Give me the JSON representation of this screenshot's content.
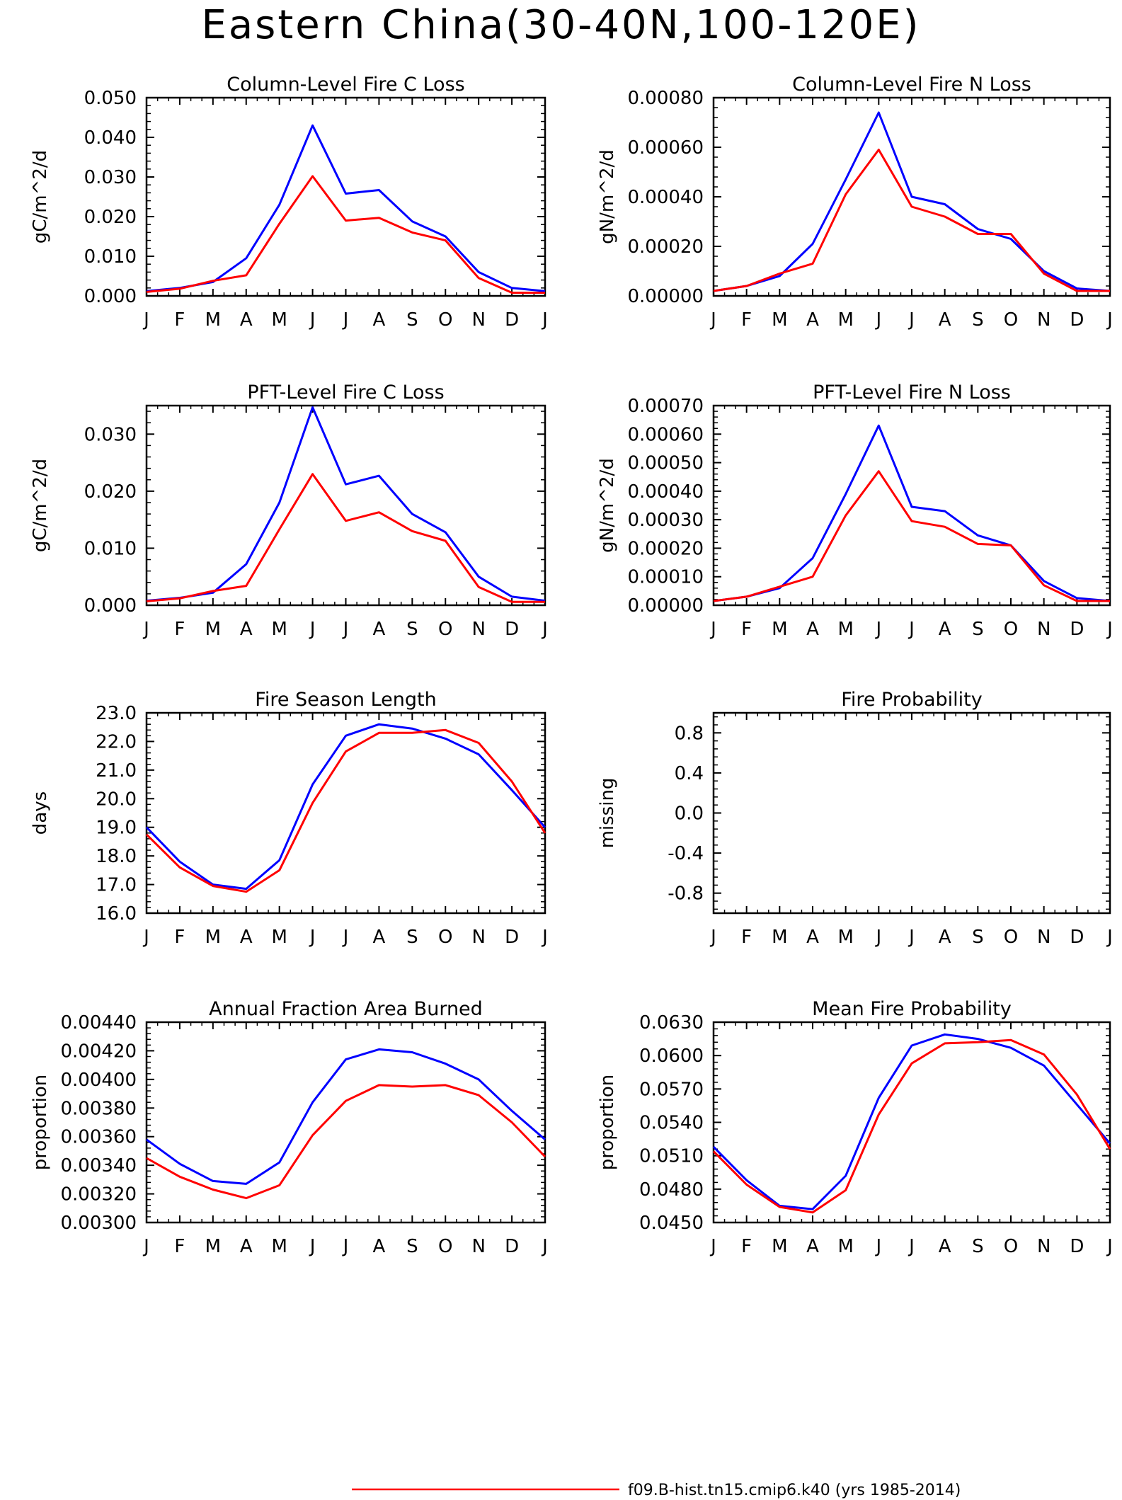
{
  "page_title": "Eastern China(30-40N,100-120E)",
  "colors": {
    "blue": "#0000ff",
    "red": "#ff0000",
    "axis": "#000000"
  },
  "legend": {
    "entries": [
      {
        "label": "f09.B-hist.tn15.cmip6.k40 (yrs 1985-2014)",
        "color": "#ff0000"
      }
    ]
  },
  "chart_data": [
    {
      "type": "line",
      "title": "Column-Level Fire C Loss",
      "ylabel": "gC/m^2/d",
      "x": [
        "J",
        "F",
        "M",
        "A",
        "M",
        "J",
        "J",
        "A",
        "S",
        "O",
        "N",
        "D",
        "J"
      ],
      "ylim": [
        0,
        0.05
      ],
      "yticks": [
        0,
        0.01,
        0.02,
        0.03,
        0.04,
        0.05
      ],
      "ytick_labels": [
        "0.000",
        "0.010",
        "0.020",
        "0.030",
        "0.040",
        "0.050"
      ],
      "series": [
        {
          "color": "blue",
          "values": [
            0.0012,
            0.002,
            0.0035,
            0.0095,
            0.023,
            0.043,
            0.0258,
            0.0267,
            0.0188,
            0.015,
            0.006,
            0.002,
            0.0012
          ]
        },
        {
          "color": "red",
          "values": [
            0.001,
            0.0018,
            0.0038,
            0.0052,
            0.0182,
            0.0302,
            0.019,
            0.0197,
            0.016,
            0.014,
            0.0045,
            0.0008,
            0.0008
          ]
        }
      ]
    },
    {
      "type": "line",
      "title": "Column-Level Fire N Loss",
      "ylabel": "gN/m^2/d",
      "x": [
        "J",
        "F",
        "M",
        "A",
        "M",
        "J",
        "J",
        "A",
        "S",
        "O",
        "N",
        "D",
        "J"
      ],
      "ylim": [
        0,
        0.0008
      ],
      "yticks": [
        0,
        0.0002,
        0.0004,
        0.0006,
        0.0008
      ],
      "ytick_labels": [
        "0.00000",
        "0.00020",
        "0.00040",
        "0.00060",
        "0.00080"
      ],
      "series": [
        {
          "color": "blue",
          "values": [
            2e-05,
            4e-05,
            8e-05,
            0.00021,
            0.00047,
            0.00074,
            0.0004,
            0.00037,
            0.00027,
            0.00023,
            0.0001,
            3e-05,
            2e-05
          ]
        },
        {
          "color": "red",
          "values": [
            2e-05,
            4e-05,
            9e-05,
            0.00013,
            0.00041,
            0.00059,
            0.00036,
            0.00032,
            0.00025,
            0.00025,
            9e-05,
            2e-05,
            2e-05
          ]
        }
      ]
    },
    {
      "type": "line",
      "title": "PFT-Level Fire C Loss",
      "ylabel": "gC/m^2/d",
      "x": [
        "J",
        "F",
        "M",
        "A",
        "M",
        "J",
        "J",
        "A",
        "S",
        "O",
        "N",
        "D",
        "J"
      ],
      "ylim": [
        0,
        0.035
      ],
      "yticks": [
        0,
        0.01,
        0.02,
        0.03
      ],
      "ytick_labels": [
        "0.000",
        "0.010",
        "0.020",
        "0.030"
      ],
      "series": [
        {
          "color": "blue",
          "values": [
            0.0008,
            0.0013,
            0.0022,
            0.0072,
            0.018,
            0.0347,
            0.0212,
            0.0227,
            0.016,
            0.0128,
            0.005,
            0.0015,
            0.0008
          ]
        },
        {
          "color": "red",
          "values": [
            0.0007,
            0.0012,
            0.0025,
            0.0034,
            0.0133,
            0.023,
            0.0148,
            0.0163,
            0.013,
            0.0113,
            0.0032,
            0.0006,
            0.0006
          ]
        }
      ]
    },
    {
      "type": "line",
      "title": "PFT-Level Fire N Loss",
      "ylabel": "gN/m^2/d",
      "x": [
        "J",
        "F",
        "M",
        "A",
        "M",
        "J",
        "J",
        "A",
        "S",
        "O",
        "N",
        "D",
        "J"
      ],
      "ylim": [
        0,
        0.0007
      ],
      "yticks": [
        0,
        0.0001,
        0.0002,
        0.0003,
        0.0004,
        0.0005,
        0.0006,
        0.0007
      ],
      "ytick_labels": [
        "0.00000",
        "0.00010",
        "0.00020",
        "0.00030",
        "0.00040",
        "0.00050",
        "0.00060",
        "0.00070"
      ],
      "series": [
        {
          "color": "blue",
          "values": [
            1.5e-05,
            3e-05,
            6e-05,
            0.000165,
            0.00039,
            0.00063,
            0.000345,
            0.00033,
            0.000245,
            0.00021,
            8.5e-05,
            2.5e-05,
            1.5e-05
          ]
        },
        {
          "color": "red",
          "values": [
            1.5e-05,
            3e-05,
            6.5e-05,
            0.0001,
            0.000315,
            0.00047,
            0.000295,
            0.000275,
            0.000215,
            0.00021,
            7e-05,
            1.5e-05,
            1.5e-05
          ]
        }
      ]
    },
    {
      "type": "line",
      "title": "Fire Season Length",
      "ylabel": "days",
      "x": [
        "J",
        "F",
        "M",
        "A",
        "M",
        "J",
        "J",
        "A",
        "S",
        "O",
        "N",
        "D",
        "J"
      ],
      "ylim": [
        16,
        23
      ],
      "yticks": [
        16,
        17,
        18,
        19,
        20,
        21,
        22,
        23
      ],
      "ytick_labels": [
        "16.0",
        "17.0",
        "18.0",
        "19.0",
        "20.0",
        "21.0",
        "22.0",
        "23.0"
      ],
      "series": [
        {
          "color": "blue",
          "values": [
            19.0,
            17.8,
            17.0,
            16.85,
            17.85,
            20.5,
            22.2,
            22.6,
            22.45,
            22.1,
            21.55,
            20.3,
            19.0
          ]
        },
        {
          "color": "red",
          "values": [
            18.75,
            17.6,
            16.95,
            16.75,
            17.5,
            19.85,
            21.65,
            22.3,
            22.3,
            22.4,
            21.95,
            20.6,
            18.8
          ]
        }
      ]
    },
    {
      "type": "line",
      "title": "Fire Probability",
      "ylabel": "missing",
      "x": [
        "J",
        "F",
        "M",
        "A",
        "M",
        "J",
        "J",
        "A",
        "S",
        "O",
        "N",
        "D",
        "J"
      ],
      "ylim": [
        -1,
        1
      ],
      "yticks": [
        -0.8,
        -0.4,
        0,
        0.4,
        0.8
      ],
      "ytick_labels": [
        "-0.8",
        "-0.4",
        "0.0",
        "0.4",
        "0.8"
      ],
      "series": []
    },
    {
      "type": "line",
      "title": "Annual Fraction Area Burned",
      "ylabel": "proportion",
      "x": [
        "J",
        "F",
        "M",
        "A",
        "M",
        "J",
        "J",
        "A",
        "S",
        "O",
        "N",
        "D",
        "J"
      ],
      "ylim": [
        0.003,
        0.0044
      ],
      "yticks": [
        0.003,
        0.0032,
        0.0034,
        0.0036,
        0.0038,
        0.004,
        0.0042,
        0.0044
      ],
      "ytick_labels": [
        "0.00300",
        "0.00320",
        "0.00340",
        "0.00360",
        "0.00380",
        "0.00400",
        "0.00420",
        "0.00440"
      ],
      "series": [
        {
          "color": "blue",
          "values": [
            0.00358,
            0.00341,
            0.00329,
            0.00327,
            0.00342,
            0.00384,
            0.00414,
            0.00421,
            0.00419,
            0.00411,
            0.004,
            0.00378,
            0.00358
          ]
        },
        {
          "color": "red",
          "values": [
            0.00345,
            0.00332,
            0.00323,
            0.00317,
            0.00326,
            0.00361,
            0.00385,
            0.00396,
            0.00395,
            0.00396,
            0.00389,
            0.0037,
            0.00346
          ]
        }
      ]
    },
    {
      "type": "line",
      "title": "Mean Fire Probability",
      "ylabel": "proportion",
      "x": [
        "J",
        "F",
        "M",
        "A",
        "M",
        "J",
        "J",
        "A",
        "S",
        "O",
        "N",
        "D",
        "J"
      ],
      "ylim": [
        0.045,
        0.063
      ],
      "yticks": [
        0.045,
        0.048,
        0.051,
        0.054,
        0.057,
        0.06,
        0.063
      ],
      "ytick_labels": [
        "0.0450",
        "0.0480",
        "0.0510",
        "0.0540",
        "0.0570",
        "0.0600",
        "0.0630"
      ],
      "series": [
        {
          "color": "blue",
          "values": [
            0.0518,
            0.0488,
            0.0465,
            0.0462,
            0.0492,
            0.0562,
            0.0609,
            0.0619,
            0.0615,
            0.0607,
            0.0591,
            0.0556,
            0.0521
          ]
        },
        {
          "color": "red",
          "values": [
            0.0514,
            0.0484,
            0.0464,
            0.0459,
            0.0479,
            0.0547,
            0.0593,
            0.0611,
            0.0612,
            0.0614,
            0.0601,
            0.0565,
            0.0516
          ]
        }
      ]
    }
  ]
}
